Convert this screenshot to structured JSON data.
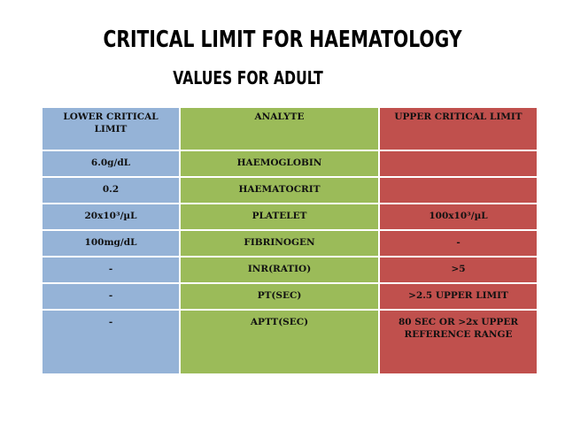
{
  "title": {
    "line1": "CRITICAL LIMIT FOR HAEMATOLOGY",
    "line2": "VALUES FOR ADULT"
  },
  "table": {
    "headers": {
      "lower": "LOWER CRITICAL LIMIT",
      "analyte": "ANALYTE",
      "upper": "UPPER CRITICAL LIMIT"
    },
    "rows": [
      {
        "lower": "6.0g/dL",
        "analyte": "HAEMOGLOBIN",
        "upper": ""
      },
      {
        "lower": "0.2",
        "analyte": "HAEMATOCRIT",
        "upper": ""
      },
      {
        "lower": "20x10³/µL",
        "analyte": "PLATELET",
        "upper": "100x10³/µL"
      },
      {
        "lower": "100mg/dL",
        "analyte": "FIBRINOGEN",
        "upper": "-"
      },
      {
        "lower": "-",
        "analyte": "INR(RATIO)",
        "upper": ">5"
      },
      {
        "lower": "-",
        "analyte": "PT(SEC)",
        "upper": ">2.5 UPPER LIMIT"
      },
      {
        "lower": "-",
        "analyte": "APTT(SEC)",
        "upper": "80 SEC OR >2x UPPER REFERENCE RANGE"
      },
      {
        "lower": "",
        "analyte": "",
        "upper": ""
      }
    ]
  },
  "colors": {
    "lower_column": "#95b3d7",
    "analyte_column": "#9bbb59",
    "upper_column": "#c0504d"
  }
}
